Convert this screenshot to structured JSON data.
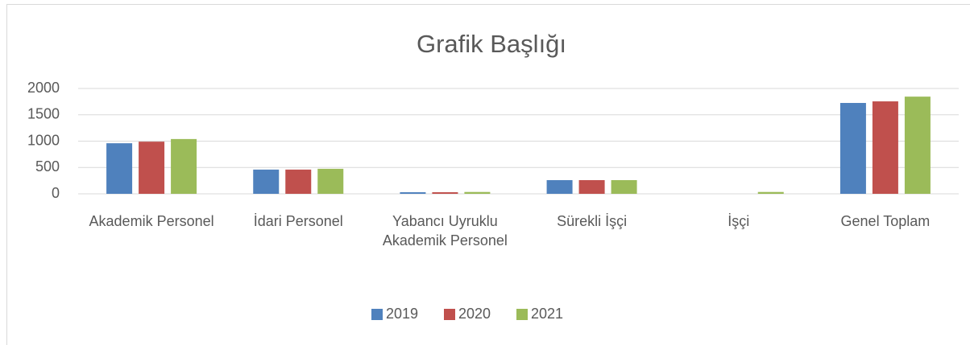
{
  "chart_data": {
    "type": "bar",
    "title": "Grafik Başlığı",
    "categories": [
      "Akademik Personel",
      "İdari Personel",
      "Yabancı Uyruklu Akademik Personel",
      "Sürekli İşçi",
      "İşçi",
      "Genel Toplam"
    ],
    "series": [
      {
        "name": "2019",
        "color": "#4f81bd",
        "values": [
          960,
          460,
          30,
          260,
          0,
          1725
        ]
      },
      {
        "name": "2020",
        "color": "#c0504d",
        "values": [
          990,
          460,
          30,
          260,
          0,
          1755
        ]
      },
      {
        "name": "2021",
        "color": "#9bbb59",
        "values": [
          1040,
          475,
          35,
          260,
          35,
          1845
        ]
      }
    ],
    "ylim": [
      0,
      2000
    ],
    "yticks": [
      0,
      500,
      1000,
      1500,
      2000
    ],
    "grid": true,
    "legend": "bottom"
  }
}
